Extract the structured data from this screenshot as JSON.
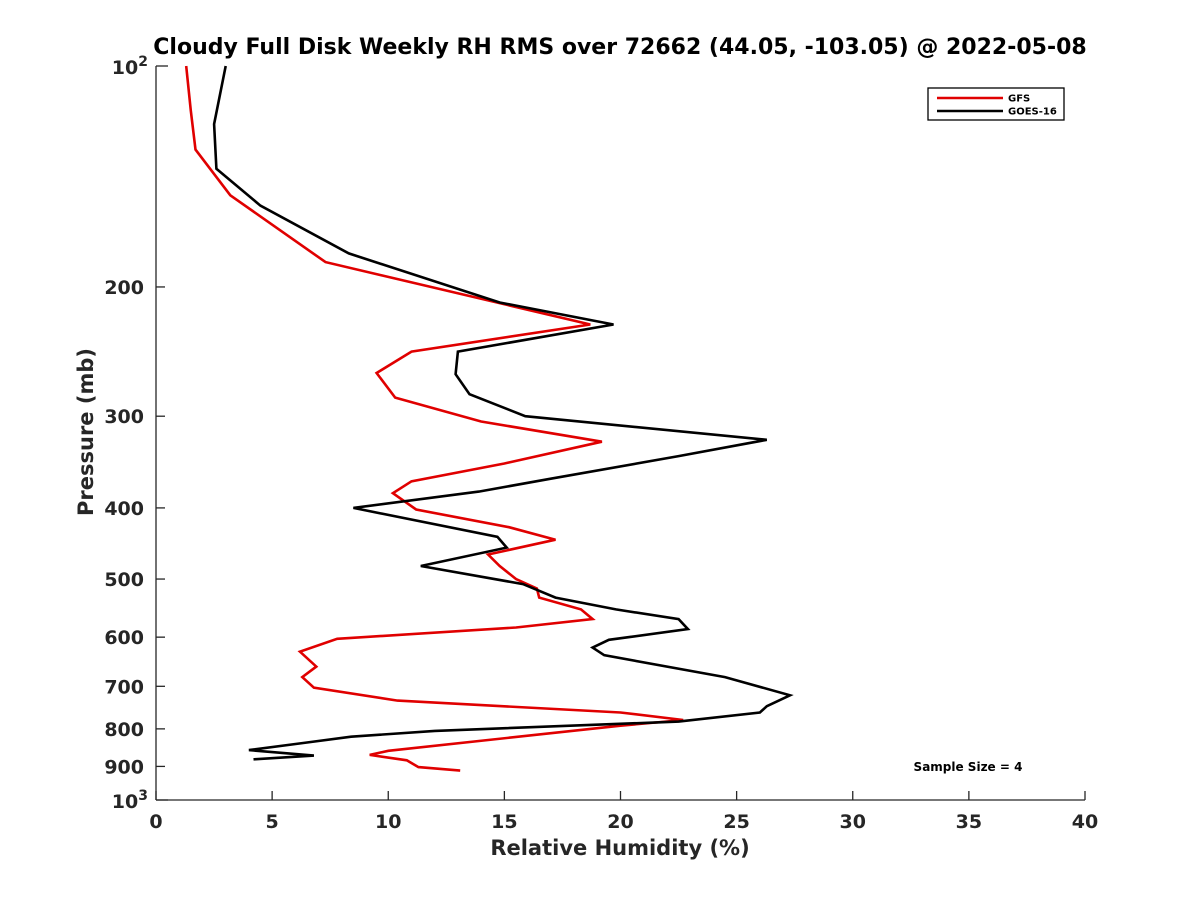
{
  "chart_data": {
    "type": "line",
    "title": "Cloudy Full Disk Weekly RH RMS over 72662 (44.05, -103.05) @ 2022-05-08",
    "xlabel": "Relative Humidity (%)",
    "ylabel": "Pressure (mb)",
    "xlim": [
      0,
      40
    ],
    "ylim": [
      100,
      1000
    ],
    "y_scale": "log",
    "y_reversed": true,
    "grid": false,
    "legend_position": "top-right",
    "x_ticks": [
      0,
      5,
      10,
      15,
      20,
      25,
      30,
      35,
      40
    ],
    "x_tick_labels": [
      "0",
      "5",
      "10",
      "15",
      "20",
      "25",
      "30",
      "35",
      "40"
    ],
    "y_ticks": [
      200,
      300,
      400,
      500,
      600,
      700,
      800,
      900
    ],
    "y_tick_labels": [
      "200",
      "300",
      "400",
      "500",
      "600",
      "700",
      "800",
      "900"
    ],
    "y_decade_ticks": [
      {
        "value": 100,
        "base": "10",
        "exp": "2"
      },
      {
        "value": 1000,
        "base": "10",
        "exp": "3"
      }
    ],
    "annotation": "Sample Size = 4",
    "series": [
      {
        "name": "GFS",
        "color": "#e00000",
        "points": [
          [
            1.3,
            100
          ],
          [
            1.5,
            115
          ],
          [
            1.7,
            130
          ],
          [
            3.2,
            150
          ],
          [
            7.3,
            185
          ],
          [
            18.7,
            225
          ],
          [
            11.0,
            245
          ],
          [
            9.5,
            262
          ],
          [
            10.3,
            283
          ],
          [
            14.0,
            305
          ],
          [
            19.2,
            325
          ],
          [
            15.0,
            348
          ],
          [
            11.0,
            368
          ],
          [
            10.2,
            382
          ],
          [
            11.2,
            402
          ],
          [
            15.2,
            425
          ],
          [
            17.2,
            442
          ],
          [
            14.3,
            463
          ],
          [
            14.8,
            480
          ],
          [
            15.5,
            500
          ],
          [
            16.4,
            515
          ],
          [
            16.5,
            530
          ],
          [
            18.3,
            550
          ],
          [
            18.8,
            567
          ],
          [
            15.5,
            582
          ],
          [
            7.8,
            603
          ],
          [
            6.2,
            628
          ],
          [
            6.9,
            658
          ],
          [
            6.3,
            680
          ],
          [
            6.8,
            703
          ],
          [
            10.4,
            732
          ],
          [
            20.0,
            760
          ],
          [
            22.7,
            778
          ],
          [
            20.0,
            792
          ],
          [
            10.0,
            857
          ],
          [
            9.2,
            868
          ],
          [
            10.8,
            883
          ],
          [
            11.3,
            902
          ],
          [
            13.1,
            912
          ]
        ]
      },
      {
        "name": "GOES-16",
        "color": "#000000",
        "points": [
          [
            3.0,
            100
          ],
          [
            2.5,
            120
          ],
          [
            2.6,
            138
          ],
          [
            4.5,
            155
          ],
          [
            8.3,
            180
          ],
          [
            14.8,
            210
          ],
          [
            19.7,
            225
          ],
          [
            13.0,
            245
          ],
          [
            12.9,
            263
          ],
          [
            13.5,
            280
          ],
          [
            15.9,
            300
          ],
          [
            26.3,
            323
          ],
          [
            22.5,
            340
          ],
          [
            17.0,
            365
          ],
          [
            13.9,
            380
          ],
          [
            8.5,
            400
          ],
          [
            14.7,
            438
          ],
          [
            15.1,
            453
          ],
          [
            11.4,
            480
          ],
          [
            15.8,
            508
          ],
          [
            17.2,
            530
          ],
          [
            19.8,
            550
          ],
          [
            22.5,
            567
          ],
          [
            22.9,
            585
          ],
          [
            19.5,
            605
          ],
          [
            18.8,
            620
          ],
          [
            19.3,
            635
          ],
          [
            24.5,
            680
          ],
          [
            27.3,
            720
          ],
          [
            26.3,
            745
          ],
          [
            26.0,
            760
          ],
          [
            22.5,
            782
          ],
          [
            12.0,
            805
          ],
          [
            8.4,
            820
          ],
          [
            6.5,
            835
          ],
          [
            4.0,
            855
          ],
          [
            6.8,
            870
          ],
          [
            4.2,
            880
          ]
        ]
      }
    ]
  }
}
